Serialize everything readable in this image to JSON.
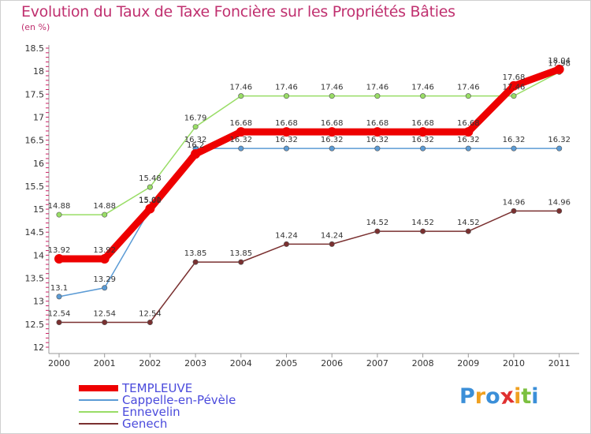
{
  "title": "Evolution du Taux de Taxe Foncière sur les Propriétés Bâties",
  "unit_label": "(en %)",
  "chart_data": {
    "type": "line",
    "title": "Evolution du Taux de Taxe Foncière sur les Propriétés Bâties",
    "ylabel": "(en %)",
    "xlabel": "",
    "ylim": [
      12,
      18.5
    ],
    "yticks": [
      "12",
      "12.5",
      "13",
      "13.5",
      "14",
      "14.5",
      "15",
      "15.5",
      "16",
      "16.5",
      "17",
      "17.5",
      "18",
      "18.5"
    ],
    "categories": [
      "2000",
      "2001",
      "2002",
      "2003",
      "2004",
      "2005",
      "2006",
      "2007",
      "2008",
      "2009",
      "2010",
      "2011"
    ],
    "series": [
      {
        "name": "TEMPLEUVE",
        "color": "#ee0000",
        "values": [
          13.92,
          13.92,
          15.01,
          16.2,
          16.68,
          16.68,
          16.68,
          16.68,
          16.68,
          16.68,
          17.68,
          18.04
        ]
      },
      {
        "name": "Cappelle-en-Pévèle",
        "color": "#5b9bd5",
        "values": [
          13.1,
          13.29,
          15.0,
          16.32,
          16.32,
          16.32,
          16.32,
          16.32,
          16.32,
          16.32,
          16.32,
          16.32
        ]
      },
      {
        "name": "Ennevelin",
        "color": "#99dd66",
        "values": [
          14.88,
          14.88,
          15.48,
          16.79,
          17.46,
          17.46,
          17.46,
          17.46,
          17.46,
          17.46,
          17.46,
          17.98
        ]
      },
      {
        "name": "Genech",
        "color": "#7a3030",
        "values": [
          12.54,
          12.54,
          12.54,
          13.85,
          13.85,
          14.24,
          14.24,
          14.52,
          14.52,
          14.52,
          14.96,
          14.96
        ]
      }
    ],
    "data_labels": [
      [
        "13.92",
        "13.92",
        "15.01",
        "16.2",
        "16.68",
        "16.68",
        "16.68",
        "16.68",
        "16.68",
        "16.68",
        "17.68",
        "18.04"
      ],
      [
        "13.1",
        "13.29",
        "15.00",
        "16.32",
        "16.32",
        "16.32",
        "16.32",
        "16.32",
        "16.32",
        "16.32",
        "16.32",
        "16.32"
      ],
      [
        "14.88",
        "14.88",
        "15.48",
        "16.79",
        "17.46",
        "17.46",
        "17.46",
        "17.46",
        "17.46",
        "17.46",
        "17.46",
        "17.98"
      ],
      [
        "12.54",
        "12.54",
        "12.54",
        "13.85",
        "13.85",
        "14.24",
        "14.24",
        "14.52",
        "14.52",
        "14.52",
        "14.96",
        "14.96"
      ]
    ],
    "grid": false
  },
  "legend": {
    "items": [
      {
        "label": "TEMPLEUVE",
        "color": "#ee0000"
      },
      {
        "label": "Cappelle-en-Pévèle",
        "color": "#5b9bd5"
      },
      {
        "label": "Ennevelin",
        "color": "#99dd66"
      },
      {
        "label": "Genech",
        "color": "#7a3030"
      }
    ]
  },
  "logo": {
    "text": "Proxiti",
    "letters": [
      "P",
      "r",
      "o",
      "x",
      "i",
      "t",
      "i"
    ],
    "colors": [
      "#3b8fd8",
      "#f0a020",
      "#3b8fd8",
      "#e03030",
      "#f0a020",
      "#7cc040",
      "#3b8fd8"
    ]
  }
}
